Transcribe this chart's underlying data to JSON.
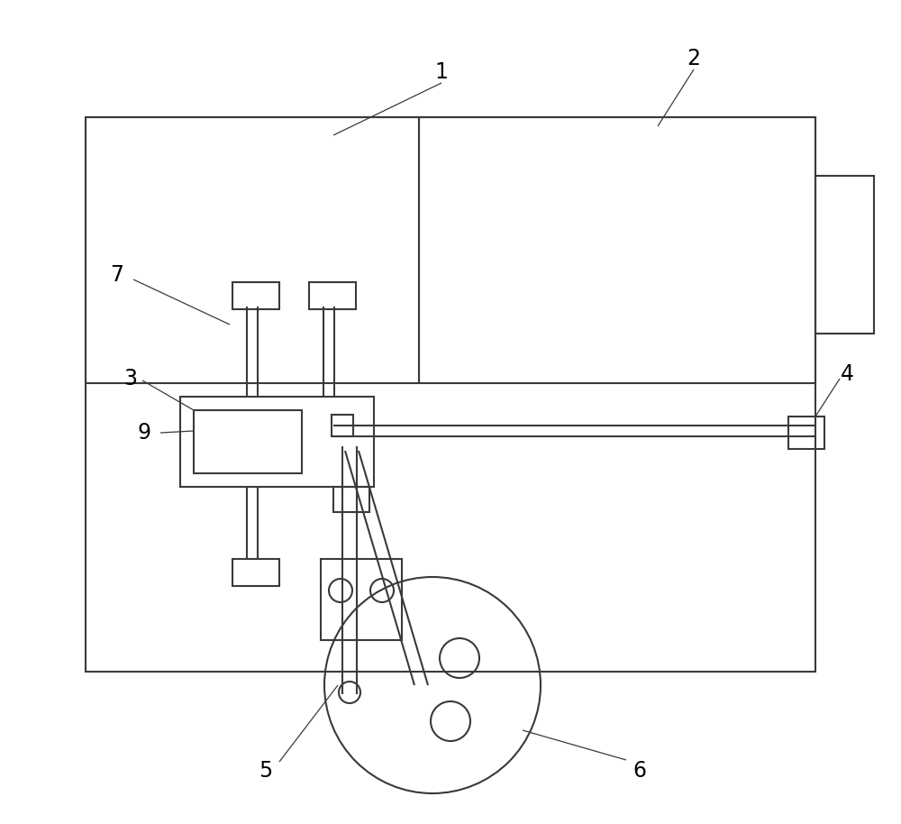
{
  "bg_color": "#ffffff",
  "line_color": "#3a3a3a",
  "lw": 1.5,
  "fig_width": 10.0,
  "fig_height": 9.14,
  "dpi": 100
}
